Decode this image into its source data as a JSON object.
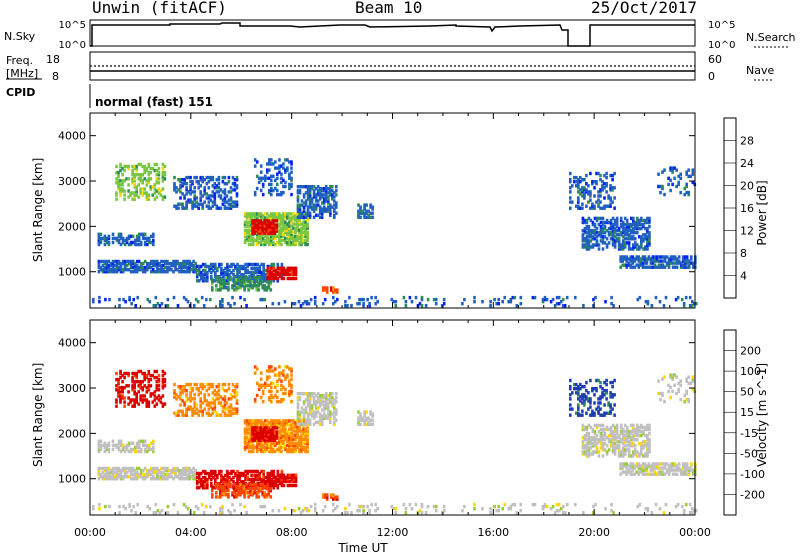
{
  "header": {
    "station": "Unwin (fitACF)",
    "beam": "Beam 10",
    "date": "25/Oct/2017"
  },
  "top_panels": {
    "nsky_label": "N.Sky",
    "nsky_ticks": [
      "10^5",
      "10^0"
    ],
    "nsearch_label": "N.Search",
    "freq_label_line1": "Freq.",
    "freq_label_line2": "[MHz]",
    "freq_ticks": [
      "18",
      "8"
    ],
    "nave_ticks": [
      "60",
      "0"
    ],
    "nave_label": "Nave",
    "cpid_label": "CPID",
    "cpid_value": "normal (fast) 151"
  },
  "colorbars": {
    "power": {
      "label": "Power [dB]",
      "ticks": [
        "28",
        "24",
        "20",
        "16",
        "12",
        "8",
        "4"
      ],
      "colors": [
        "#dd0000",
        "#ff4500",
        "#ff8c00",
        "#ffd700",
        "#7cc742",
        "#2e8b57",
        "#2060c0",
        "#0022ee"
      ]
    },
    "velocity": {
      "label": "Velocity [m s^-1]",
      "ticks": [
        "200",
        "100",
        "50",
        "15",
        "-15",
        "-50",
        "-100",
        "-200"
      ],
      "colors": [
        "#1f3fb0",
        "#2e8b57",
        "#44bb44",
        "#9acd32",
        "#c0c0c0",
        "#ffd700",
        "#ff8c00",
        "#ff4500",
        "#dd0000"
      ]
    }
  },
  "chart_data": [
    {
      "type": "heatmap",
      "title": "Power",
      "ylabel": "Slant Range [km]",
      "xlabel": "",
      "xlim": [
        0,
        24
      ],
      "ylim": [
        200,
        4500
      ],
      "yticks": [
        "4000",
        "3000",
        "2000",
        "1000"
      ],
      "colorbar_label": "Power [dB]",
      "colorbar_ticks": [
        "28",
        "24",
        "20",
        "16",
        "12",
        "8",
        "4"
      ],
      "note": "Echo regions visible 00:00-10:00 and 19:00-24:00"
    },
    {
      "type": "heatmap",
      "title": "Velocity",
      "ylabel": "Slant Range [km]",
      "xlabel": "Time UT",
      "xlim": [
        0,
        24
      ],
      "ylim": [
        200,
        4500
      ],
      "xticks": [
        "00:00",
        "04:00",
        "08:00",
        "12:00",
        "16:00",
        "20:00",
        "00:00"
      ],
      "yticks": [
        "4000",
        "3000",
        "2000",
        "1000"
      ],
      "colorbar_label": "Velocity [m s^-1]",
      "colorbar_ticks": [
        "200",
        "100",
        "50",
        "15",
        "-15",
        "-50",
        "-100",
        "-200"
      ]
    }
  ]
}
